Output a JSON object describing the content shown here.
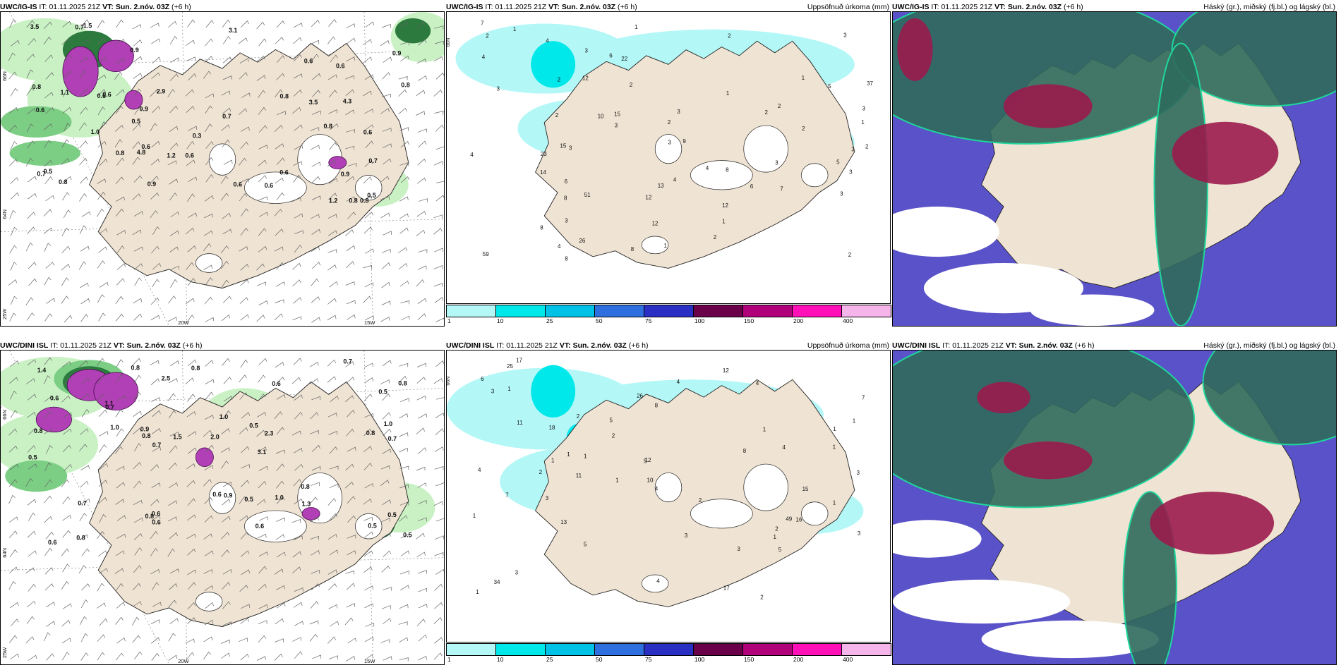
{
  "panels": {
    "r1c1": {
      "model": "UWC/IG-IS",
      "it_label": "IT:",
      "it_value": "01.11.2025 21Z",
      "vt_label": "VT:",
      "vt_value": "Sun. 2.nóv. 03Z",
      "lead": "(+6 h)",
      "right_title": ""
    },
    "r1c2": {
      "model": "UWC/IG-IS",
      "it_label": "IT:",
      "it_value": "01.11.2025 21Z",
      "vt_label": "VT:",
      "vt_value": "Sun. 2.nóv. 03Z",
      "lead": "(+6 h)",
      "right_title": "Uppsöfnuð úrkoma (mm)"
    },
    "r1c3": {
      "model": "UWC/IG-IS",
      "it_label": "IT:",
      "it_value": "01.11.2025 21Z",
      "vt_label": "VT:",
      "vt_value": "Sun. 2.nóv. 03Z",
      "lead": "(+6 h)",
      "right_title": "Háský (gr.), miðský (fj.bl.) og lágský (bl.)"
    },
    "r2c1": {
      "model": "UWC/DINI ISL",
      "it_label": "IT:",
      "it_value": "01.11.2025 21Z",
      "vt_label": "VT:",
      "vt_value": "Sun. 2.nóv. 03Z",
      "lead": "(+6 h)",
      "right_title": ""
    },
    "r2c2": {
      "model": "UWC/DINI ISL",
      "it_label": "IT:",
      "it_value": "01.11.2025 21Z",
      "vt_label": "VT:",
      "vt_value": "Sun. 2.nóv. 03Z",
      "lead": "(+6 h)",
      "right_title": "Uppsöfnuð úrkoma (mm)"
    },
    "r2c3": {
      "model": "UWC/DINI ISL",
      "it_label": "IT:",
      "it_value": "01.11.2025 21Z",
      "vt_label": "VT:",
      "vt_value": "Sun. 2.nóv. 03Z",
      "lead": "(+6 h)",
      "right_title": "Háský (gr.), miðský (fj.bl.) og lágský (bl.)"
    }
  },
  "axis_labels": {
    "lat_66n": "66N",
    "lat_64n": "64N",
    "lon_25w": "25W",
    "lon_20w": "20W",
    "lon_15w": "15W"
  },
  "colorbar": {
    "labels": [
      "1",
      "10",
      "25",
      "50",
      "75",
      "100",
      "150",
      "200",
      "400"
    ],
    "colors": [
      "#b3f7f7",
      "#00e8ea",
      "#00c1e6",
      "#2e6fe0",
      "#2a2fc4",
      "#690049",
      "#b0007a",
      "#ff0fb7",
      "#f5b5ea"
    ]
  },
  "precip_values": {
    "ig": {
      "wind_left": [
        "0.3",
        "0.6",
        "0.7",
        "0.8",
        "0.8",
        "0.9",
        "0.6",
        "0.5",
        "4.8",
        "3.5",
        "4.3",
        "3.1",
        "3.5",
        "1.2",
        "0.9",
        "0.6",
        "0.7",
        "0.8",
        "0.9",
        "2.9",
        "0.8",
        "0.6",
        "0.6",
        "0.8",
        "0.9",
        "0.8",
        "0.6",
        "0.5",
        "0.6",
        "0.7",
        "0.6",
        "1.2",
        "0.8",
        "0.7",
        "0.6",
        "0.8",
        "1.1",
        "1.5",
        "1.0",
        "0.9",
        "0.6",
        "0.5",
        "0.6"
      ],
      "accum": [
        "2",
        "7",
        "4",
        "3",
        "37",
        "12",
        "22",
        "51",
        "59",
        "6",
        "8",
        "9",
        "8",
        "14",
        "13",
        "10",
        "12",
        "8",
        "12",
        "15",
        "3",
        "12",
        "26",
        "15",
        "23",
        "4",
        "6",
        "7",
        "8",
        "6",
        "4",
        "3",
        "5",
        "3",
        "3",
        "2",
        "4",
        "3",
        "1",
        "1",
        "2",
        "1",
        "8",
        "2",
        "1",
        "3",
        "3",
        "2",
        "2",
        "3",
        "2",
        "3",
        "4",
        "5",
        "3",
        "4",
        "2",
        "2",
        "1",
        "1",
        "2",
        "3",
        "2",
        "3",
        "2",
        "1"
      ]
    },
    "dini": {
      "wind_left": [
        "0.6",
        "0.5",
        "0.8",
        "1.0",
        "0.8",
        "2.3",
        "3.1",
        "2.0",
        "1.5",
        "0.9",
        "0.5",
        "0.7",
        "0.8",
        "0.6",
        "0.5",
        "0.8",
        "0.6",
        "1.0",
        "0.8",
        "0.7",
        "0.6",
        "0.9",
        "0.5",
        "0.8",
        "0.8",
        "0.6",
        "0.7",
        "0.8",
        "0.6",
        "0.5",
        "0.7",
        "0.6",
        "1.1",
        "1.0",
        "0.5",
        "0.5",
        "0.7",
        "0.8",
        "2.5",
        "1.4",
        "1.3",
        "1.0"
      ],
      "accum": [
        "4",
        "2",
        "2",
        "1",
        "12",
        "17",
        "11",
        "8",
        "5",
        "49",
        "34",
        "15",
        "18",
        "25",
        "26",
        "16",
        "17",
        "12",
        "7",
        "8",
        "13",
        "6",
        "4",
        "11",
        "5",
        "4",
        "10",
        "7",
        "4",
        "3",
        "5",
        "1",
        "1",
        "3",
        "2",
        "1",
        "3",
        "4",
        "2",
        "5",
        "3",
        "2",
        "3",
        "1",
        "1",
        "3",
        "2",
        "1",
        "1",
        "1",
        "4",
        "3",
        "1",
        "1",
        "1",
        "1"
      ]
    }
  },
  "legend_colors": {
    "land": "#efe3d3",
    "sea": "#ffffff",
    "precip_light": "#c9f1c4",
    "precip_mid": "#7cce84",
    "precip_dark": "#2c7a3e",
    "precip_heavy": "#b13fb5",
    "cloud_high": "#2f6a5c",
    "cloud_mid": "#5a52c8",
    "cloud_low": "#9a1b4c",
    "cloud_edge": "#1fd69b"
  }
}
